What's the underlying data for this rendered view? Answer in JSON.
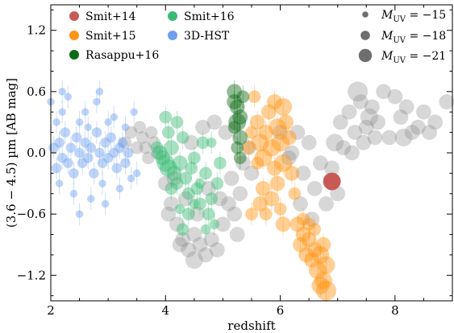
{
  "chart_data": {
    "type": "scatter",
    "xlabel": "redshift",
    "ylabel": "(3.6 − 4.5) µm  [AB mag]",
    "xlim": [
      2,
      9
    ],
    "ylim": [
      -1.45,
      1.45
    ],
    "xticks": [
      2,
      4,
      6,
      8
    ],
    "yticks": [
      -1.2,
      -0.6,
      0.0,
      0.6,
      1.2
    ],
    "xtick_labels": [
      "2",
      "4",
      "6",
      "8"
    ],
    "ytick_labels": [
      "−1.2",
      "−0.6",
      "0.0",
      "0.6",
      "1.2"
    ],
    "grid": false,
    "legend_position": "top",
    "size_legend": [
      {
        "label": "M",
        "sub": "UV",
        "eq": " = −15",
        "muv": -15
      },
      {
        "label": "M",
        "sub": "UV",
        "eq": " = −18",
        "muv": -18
      },
      {
        "label": "M",
        "sub": "UV",
        "eq": " = −21",
        "muv": -21
      }
    ],
    "series": [
      {
        "name": "Smit+14",
        "color": "#c85a55",
        "points": [
          [
            6.9,
            -0.28,
            -20
          ]
        ]
      },
      {
        "name": "Smit+15",
        "color": "#ff9514",
        "points": [
          [
            5.55,
            0.55,
            -18
          ],
          [
            5.6,
            0.3,
            -19
          ],
          [
            5.65,
            0.1,
            -20
          ],
          [
            5.7,
            -0.05,
            -20
          ],
          [
            5.75,
            0.2,
            -19
          ],
          [
            5.8,
            0.4,
            -19
          ],
          [
            5.85,
            0.05,
            -20
          ],
          [
            5.9,
            -0.15,
            -19
          ],
          [
            5.95,
            0.25,
            -20
          ],
          [
            6.0,
            0.1,
            -20
          ],
          [
            6.05,
            -0.1,
            -20
          ],
          [
            6.1,
            0.3,
            -19
          ],
          [
            6.15,
            0.15,
            -19
          ],
          [
            5.6,
            -0.1,
            -18
          ],
          [
            5.7,
            -0.35,
            -19
          ],
          [
            5.75,
            -0.6,
            -18
          ],
          [
            5.85,
            -0.45,
            -19
          ],
          [
            5.95,
            -0.3,
            -19
          ],
          [
            6.0,
            -0.55,
            -18
          ],
          [
            6.05,
            -0.7,
            -19
          ],
          [
            5.5,
            -0.6,
            -18
          ],
          [
            5.65,
            -0.5,
            -19
          ],
          [
            6.2,
            -0.2,
            -19
          ],
          [
            6.25,
            -0.4,
            -18
          ],
          [
            5.9,
            0.5,
            -19
          ],
          [
            6.3,
            -0.7,
            -19
          ],
          [
            6.35,
            -0.9,
            -19
          ],
          [
            6.4,
            -0.8,
            -19
          ],
          [
            6.45,
            -1.0,
            -19
          ],
          [
            6.5,
            -0.85,
            -19
          ],
          [
            6.55,
            -1.05,
            -19
          ],
          [
            6.6,
            -0.95,
            -19
          ],
          [
            6.65,
            -1.15,
            -20
          ],
          [
            6.7,
            -1.0,
            -20
          ],
          [
            6.75,
            -1.25,
            -20
          ],
          [
            6.8,
            -1.35,
            -21
          ],
          [
            6.8,
            -1.1,
            -20
          ],
          [
            6.75,
            -0.9,
            -19
          ],
          [
            6.6,
            -0.75,
            -18
          ],
          [
            6.5,
            -0.7,
            -18
          ],
          [
            6.4,
            -0.65,
            -18
          ],
          [
            6.7,
            -1.3,
            -20
          ],
          [
            5.5,
            0.2,
            -18
          ],
          [
            5.45,
            0.05,
            -18
          ],
          [
            6.05,
            0.45,
            -20
          ]
        ]
      },
      {
        "name": "Rasappu+16",
        "color": "#0d6b16",
        "points": [
          [
            5.2,
            0.6,
            -19
          ],
          [
            5.25,
            0.45,
            -19
          ],
          [
            5.3,
            0.35,
            -19
          ],
          [
            5.2,
            0.25,
            -18
          ],
          [
            5.3,
            0.15,
            -19
          ],
          [
            5.25,
            0.05,
            -18
          ],
          [
            5.3,
            -0.05,
            -18
          ],
          [
            5.2,
            0.5,
            -19
          ],
          [
            5.35,
            0.55,
            -18
          ],
          [
            5.25,
            0.3,
            -20
          ]
        ]
      },
      {
        "name": "Smit+16",
        "color": "#3bba75",
        "points": [
          [
            3.9,
            0.0,
            -19
          ],
          [
            3.95,
            -0.05,
            -19
          ],
          [
            4.0,
            -0.1,
            -20
          ],
          [
            4.05,
            -0.15,
            -20
          ],
          [
            4.1,
            0.05,
            -19
          ],
          [
            4.15,
            -0.2,
            -19
          ],
          [
            4.2,
            -0.3,
            -18
          ],
          [
            4.25,
            -0.1,
            -19
          ],
          [
            4.3,
            0.15,
            -18
          ],
          [
            4.35,
            -0.25,
            -18
          ],
          [
            4.4,
            -0.4,
            -18
          ],
          [
            4.45,
            -0.15,
            -18
          ],
          [
            4.5,
            -0.05,
            -18
          ],
          [
            4.55,
            -0.35,
            -18
          ],
          [
            4.6,
            -0.5,
            -18
          ],
          [
            4.65,
            0.1,
            -18
          ],
          [
            4.7,
            -0.2,
            -18
          ],
          [
            4.75,
            -0.6,
            -18
          ],
          [
            4.8,
            -0.45,
            -18
          ],
          [
            4.85,
            -0.7,
            -17
          ],
          [
            4.9,
            -0.3,
            -18
          ],
          [
            4.95,
            -0.1,
            -18
          ],
          [
            4.0,
            0.35,
            -18
          ],
          [
            4.2,
            0.3,
            -18
          ],
          [
            4.4,
            -0.6,
            -18
          ],
          [
            4.3,
            -0.75,
            -18
          ],
          [
            4.6,
            -0.3,
            -17
          ],
          [
            4.8,
            0.1,
            -17
          ],
          [
            3.85,
            0.05,
            -18
          ],
          [
            4.05,
            0.2,
            -18
          ],
          [
            4.5,
            -0.5,
            -17
          ],
          [
            4.1,
            -0.35,
            -18
          ],
          [
            4.7,
            -0.75,
            -17
          ],
          [
            4.25,
            -0.55,
            -17
          ]
        ]
      },
      {
        "name": "3D-HST",
        "color": "#6ea0f0",
        "points": [
          [
            2.05,
            0.05,
            -17
          ],
          [
            2.1,
            -0.15,
            -17
          ],
          [
            2.15,
            0.1,
            -17
          ],
          [
            2.2,
            -0.05,
            -17
          ],
          [
            2.25,
            0.2,
            -17
          ],
          [
            2.3,
            -0.1,
            -17
          ],
          [
            2.35,
            0.05,
            -17
          ],
          [
            2.4,
            -0.2,
            -17
          ],
          [
            2.45,
            0.15,
            -17
          ],
          [
            2.5,
            0.0,
            -17
          ],
          [
            2.55,
            -0.1,
            -17
          ],
          [
            2.6,
            0.1,
            -17
          ],
          [
            2.65,
            -0.05,
            -17
          ],
          [
            2.7,
            0.05,
            -17
          ],
          [
            2.75,
            -0.2,
            -17
          ],
          [
            2.8,
            0.2,
            -17
          ],
          [
            2.85,
            0.0,
            -17
          ],
          [
            2.9,
            -0.1,
            -17
          ],
          [
            2.95,
            0.1,
            -17
          ],
          [
            3.0,
            -0.05,
            -17
          ],
          [
            3.05,
            0.15,
            -17
          ],
          [
            3.1,
            0.0,
            -17
          ],
          [
            3.15,
            -0.15,
            -17
          ],
          [
            3.2,
            0.05,
            -17
          ],
          [
            3.25,
            0.1,
            -17
          ],
          [
            3.3,
            -0.1,
            -17
          ],
          [
            3.35,
            0.0,
            -17
          ],
          [
            2.3,
            0.55,
            -16
          ],
          [
            2.2,
            0.4,
            -16
          ],
          [
            2.6,
            0.4,
            -16
          ],
          [
            2.8,
            0.5,
            -16
          ],
          [
            3.1,
            0.35,
            -16
          ],
          [
            2.4,
            -0.4,
            -16
          ],
          [
            2.7,
            -0.45,
            -16
          ],
          [
            2.9,
            -0.3,
            -16
          ],
          [
            3.2,
            -0.35,
            -16
          ],
          [
            3.4,
            -0.25,
            -16
          ],
          [
            3.5,
            -0.2,
            -16
          ],
          [
            2.5,
            -0.6,
            -16
          ],
          [
            2.0,
            0.5,
            -16
          ],
          [
            2.1,
            0.3,
            -16
          ],
          [
            2.2,
            0.6,
            -16
          ],
          [
            3.0,
            0.3,
            -16
          ],
          [
            3.3,
            0.25,
            -16
          ],
          [
            2.5,
            0.3,
            -16
          ],
          [
            2.65,
            0.25,
            -16
          ],
          [
            2.95,
            -0.5,
            -16
          ],
          [
            2.15,
            -0.3,
            -16
          ],
          [
            2.85,
            0.6,
            -16
          ],
          [
            3.45,
            0.4,
            -16
          ]
        ]
      },
      {
        "name": "",
        "color": "#8c8c8c",
        "points": [
          [
            3.3,
            0.1,
            -18
          ],
          [
            3.4,
            0.2,
            -18
          ],
          [
            3.5,
            0.05,
            -18
          ],
          [
            3.6,
            0.15,
            -18
          ],
          [
            3.7,
            -0.05,
            -18
          ],
          [
            3.8,
            0.1,
            -18
          ],
          [
            3.55,
            0.25,
            -18
          ],
          [
            3.65,
            0.05,
            -18
          ],
          [
            3.75,
            0.2,
            -18
          ],
          [
            3.85,
            0.0,
            -18
          ],
          [
            4.0,
            -0.3,
            -19
          ],
          [
            4.1,
            -0.5,
            -19
          ],
          [
            4.2,
            -0.7,
            -19
          ],
          [
            4.3,
            -0.85,
            -19
          ],
          [
            4.4,
            -0.95,
            -19
          ],
          [
            4.5,
            -0.8,
            -19
          ],
          [
            4.6,
            -0.9,
            -19
          ],
          [
            4.7,
            -1.0,
            -19
          ],
          [
            4.8,
            -0.85,
            -19
          ],
          [
            4.9,
            -0.95,
            -19
          ],
          [
            5.0,
            -0.7,
            -19
          ],
          [
            5.1,
            -0.5,
            -19
          ],
          [
            5.2,
            -0.6,
            -19
          ],
          [
            5.3,
            -0.4,
            -19
          ],
          [
            4.15,
            -0.25,
            -19
          ],
          [
            4.35,
            -0.45,
            -19
          ],
          [
            4.55,
            -0.6,
            -19
          ],
          [
            4.75,
            -0.35,
            -19
          ],
          [
            4.95,
            -0.45,
            -19
          ],
          [
            5.15,
            -0.25,
            -19
          ],
          [
            5.35,
            -0.1,
            -19
          ],
          [
            5.45,
            0.05,
            -19
          ],
          [
            5.5,
            -0.2,
            -19
          ],
          [
            5.05,
            0.2,
            -19
          ],
          [
            4.85,
            0.3,
            -19
          ],
          [
            4.65,
            0.25,
            -19
          ],
          [
            4.45,
            0.1,
            -19
          ],
          [
            5.25,
            -0.8,
            -19
          ],
          [
            4.25,
            -0.9,
            -19
          ],
          [
            4.05,
            -0.6,
            -19
          ],
          [
            6.2,
            0.0,
            -19
          ],
          [
            6.4,
            -0.2,
            -19
          ],
          [
            6.6,
            -0.35,
            -19
          ],
          [
            6.8,
            -0.5,
            -19
          ],
          [
            7.0,
            -0.4,
            -19
          ],
          [
            6.3,
            0.2,
            -19
          ],
          [
            6.5,
            0.1,
            -19
          ],
          [
            6.7,
            -0.1,
            -19
          ],
          [
            6.9,
            -0.15,
            -19
          ],
          [
            7.1,
            0.05,
            -19
          ],
          [
            7.3,
            0.2,
            -19
          ],
          [
            7.5,
            0.25,
            -19
          ],
          [
            7.7,
            0.3,
            -19
          ],
          [
            7.9,
            0.15,
            -19
          ],
          [
            8.1,
            0.35,
            -19
          ],
          [
            8.3,
            0.2,
            -19
          ],
          [
            8.5,
            0.4,
            -19
          ],
          [
            8.7,
            0.3,
            -19
          ],
          [
            8.9,
            0.5,
            -19
          ],
          [
            7.2,
            0.4,
            -19
          ],
          [
            7.4,
            0.5,
            -19
          ],
          [
            7.6,
            0.45,
            -19
          ],
          [
            7.8,
            0.6,
            -19
          ],
          [
            8.0,
            0.55,
            -19
          ],
          [
            8.2,
            0.45,
            -19
          ],
          [
            6.0,
            0.2,
            -19
          ],
          [
            6.15,
            -0.05,
            -19
          ],
          [
            6.35,
            -0.5,
            -19
          ],
          [
            6.55,
            -0.65,
            -19
          ],
          [
            7.05,
            0.3,
            -19
          ],
          [
            7.25,
            0.0,
            -19
          ],
          [
            7.45,
            0.1,
            -19
          ],
          [
            7.65,
            0.15,
            -19
          ],
          [
            8.4,
            0.25,
            -19
          ],
          [
            8.6,
            0.2,
            -19
          ],
          [
            7.35,
            0.6,
            -21
          ],
          [
            6.95,
            0.1,
            -20
          ],
          [
            8.15,
            0.15,
            -20
          ],
          [
            7.55,
            0.35,
            -20
          ],
          [
            4.5,
            -1.05,
            -20
          ]
        ]
      }
    ]
  }
}
